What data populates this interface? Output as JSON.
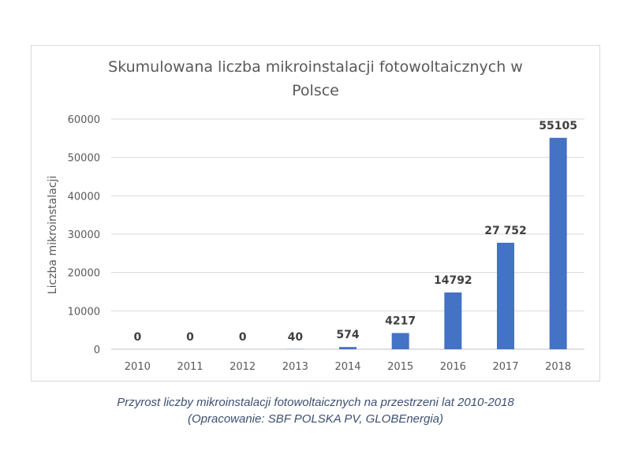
{
  "chart_data": {
    "type": "bar",
    "title_lines": [
      "Skumulowana liczba mikroinstalacji fotowoltaicznych w",
      "Polsce"
    ],
    "ylabel": "Liczba mikroinstalacji",
    "xlabel": "",
    "categories": [
      "2010",
      "2011",
      "2012",
      "2013",
      "2014",
      "2015",
      "2016",
      "2017",
      "2018"
    ],
    "values": [
      0,
      0,
      0,
      40,
      574,
      4217,
      14792,
      27752,
      55105
    ],
    "data_labels": [
      "0",
      "0",
      "0",
      "40",
      "574",
      "4217",
      "14792",
      "27 752",
      "55105"
    ],
    "ylim": [
      0,
      60000
    ],
    "yticks": [
      0,
      10000,
      20000,
      30000,
      40000,
      50000,
      60000
    ],
    "ytick_labels": [
      "0",
      "10000",
      "20000",
      "30000",
      "40000",
      "50000",
      "60000"
    ],
    "grid": true,
    "legend": "none",
    "bar_color": "#4472c4"
  },
  "caption": {
    "line1": "Przyrost liczby mikroinstalacji fotowoltaicznych na przestrzeni lat 2010-2018",
    "line2": "(Opracowanie: SBF POLSKA PV, GLOBEnergia)"
  }
}
